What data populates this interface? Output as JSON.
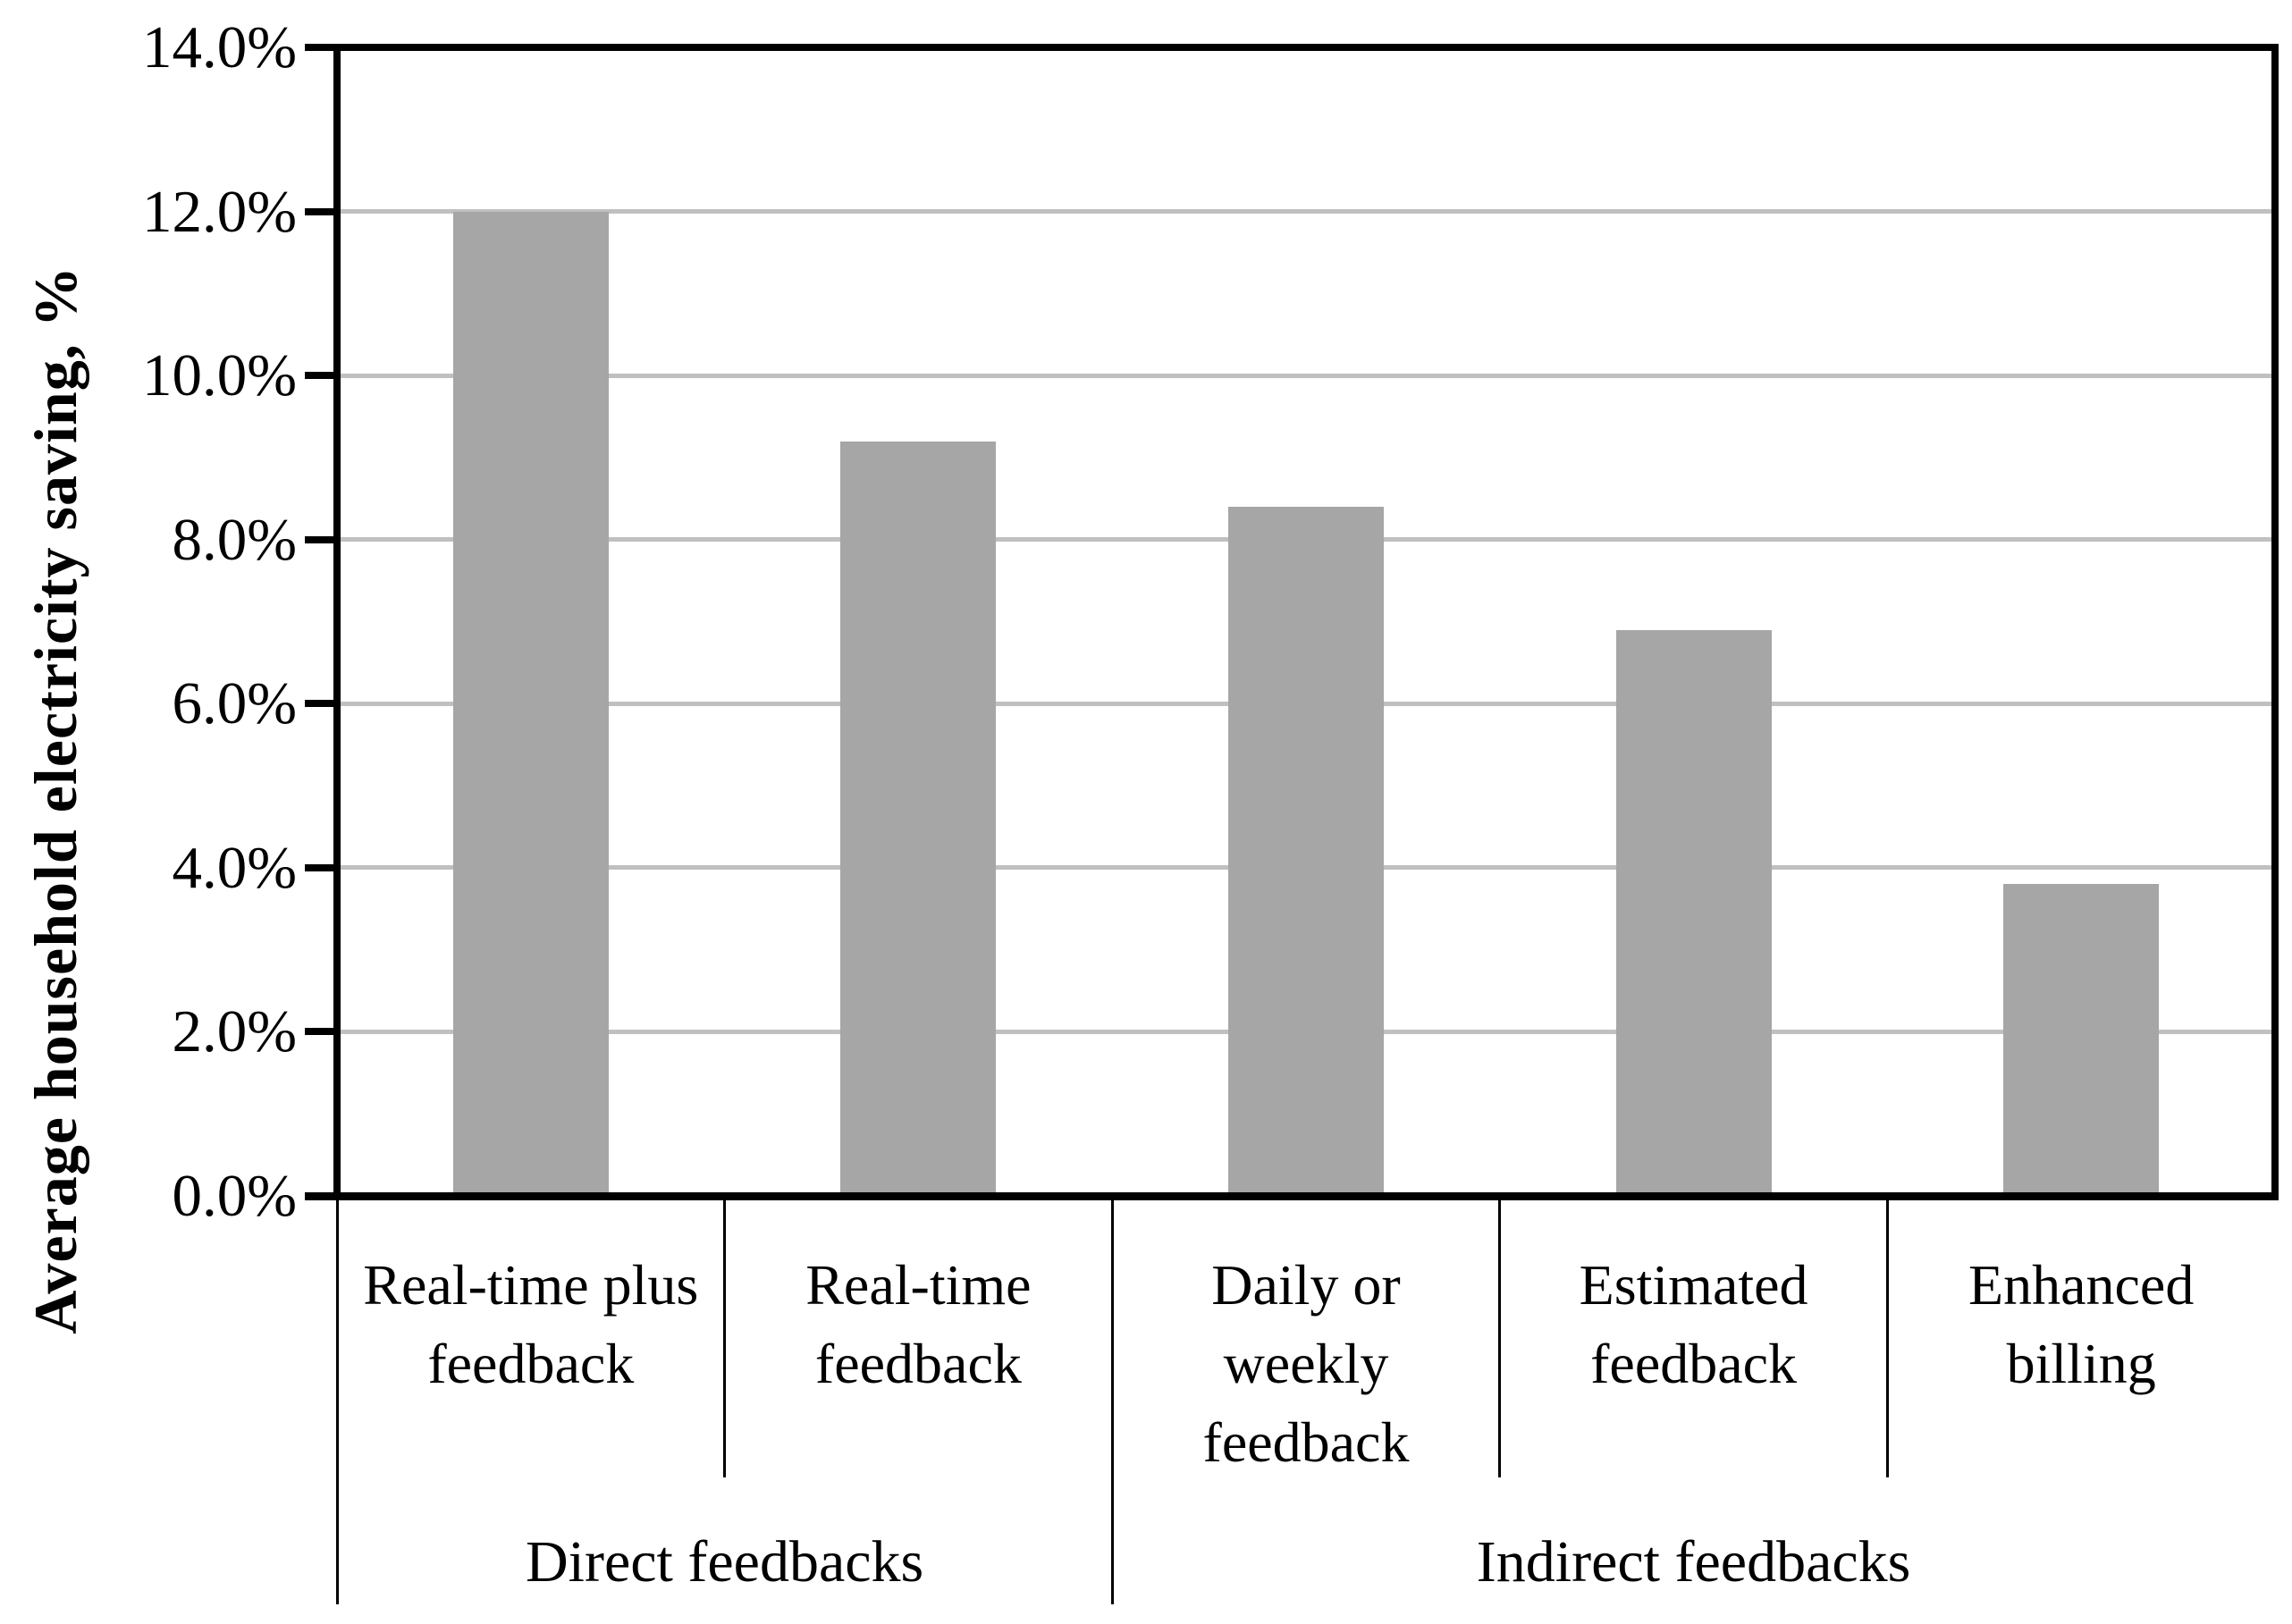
{
  "chart_data": {
    "type": "bar",
    "title": "",
    "xlabel": "",
    "ylabel": "Average household electricity saving, %",
    "categories": [
      "Real-time plus feedback",
      "Real-time feedback",
      "Daily or weekly feedback",
      "Estimated feedback",
      "Enhanced billing"
    ],
    "values": [
      12.0,
      9.2,
      8.4,
      6.9,
      3.8
    ],
    "value_unit": "%",
    "groups": [
      {
        "label": "Direct feedbacks",
        "span": 2
      },
      {
        "label": "Indirect feedbacks",
        "span": 3
      }
    ],
    "ylim": [
      0,
      14
    ],
    "ytick_step": 2,
    "ytick_labels": [
      "0.0%",
      "2.0%",
      "4.0%",
      "6.0%",
      "8.0%",
      "10.0%",
      "12.0%",
      "14.0%"
    ],
    "grid": true,
    "legend": "none",
    "bar_color": "#a6a6a6",
    "gridline_color": "#c0c0c0",
    "axis_color": "#000000",
    "background_color": "#ffffff"
  }
}
